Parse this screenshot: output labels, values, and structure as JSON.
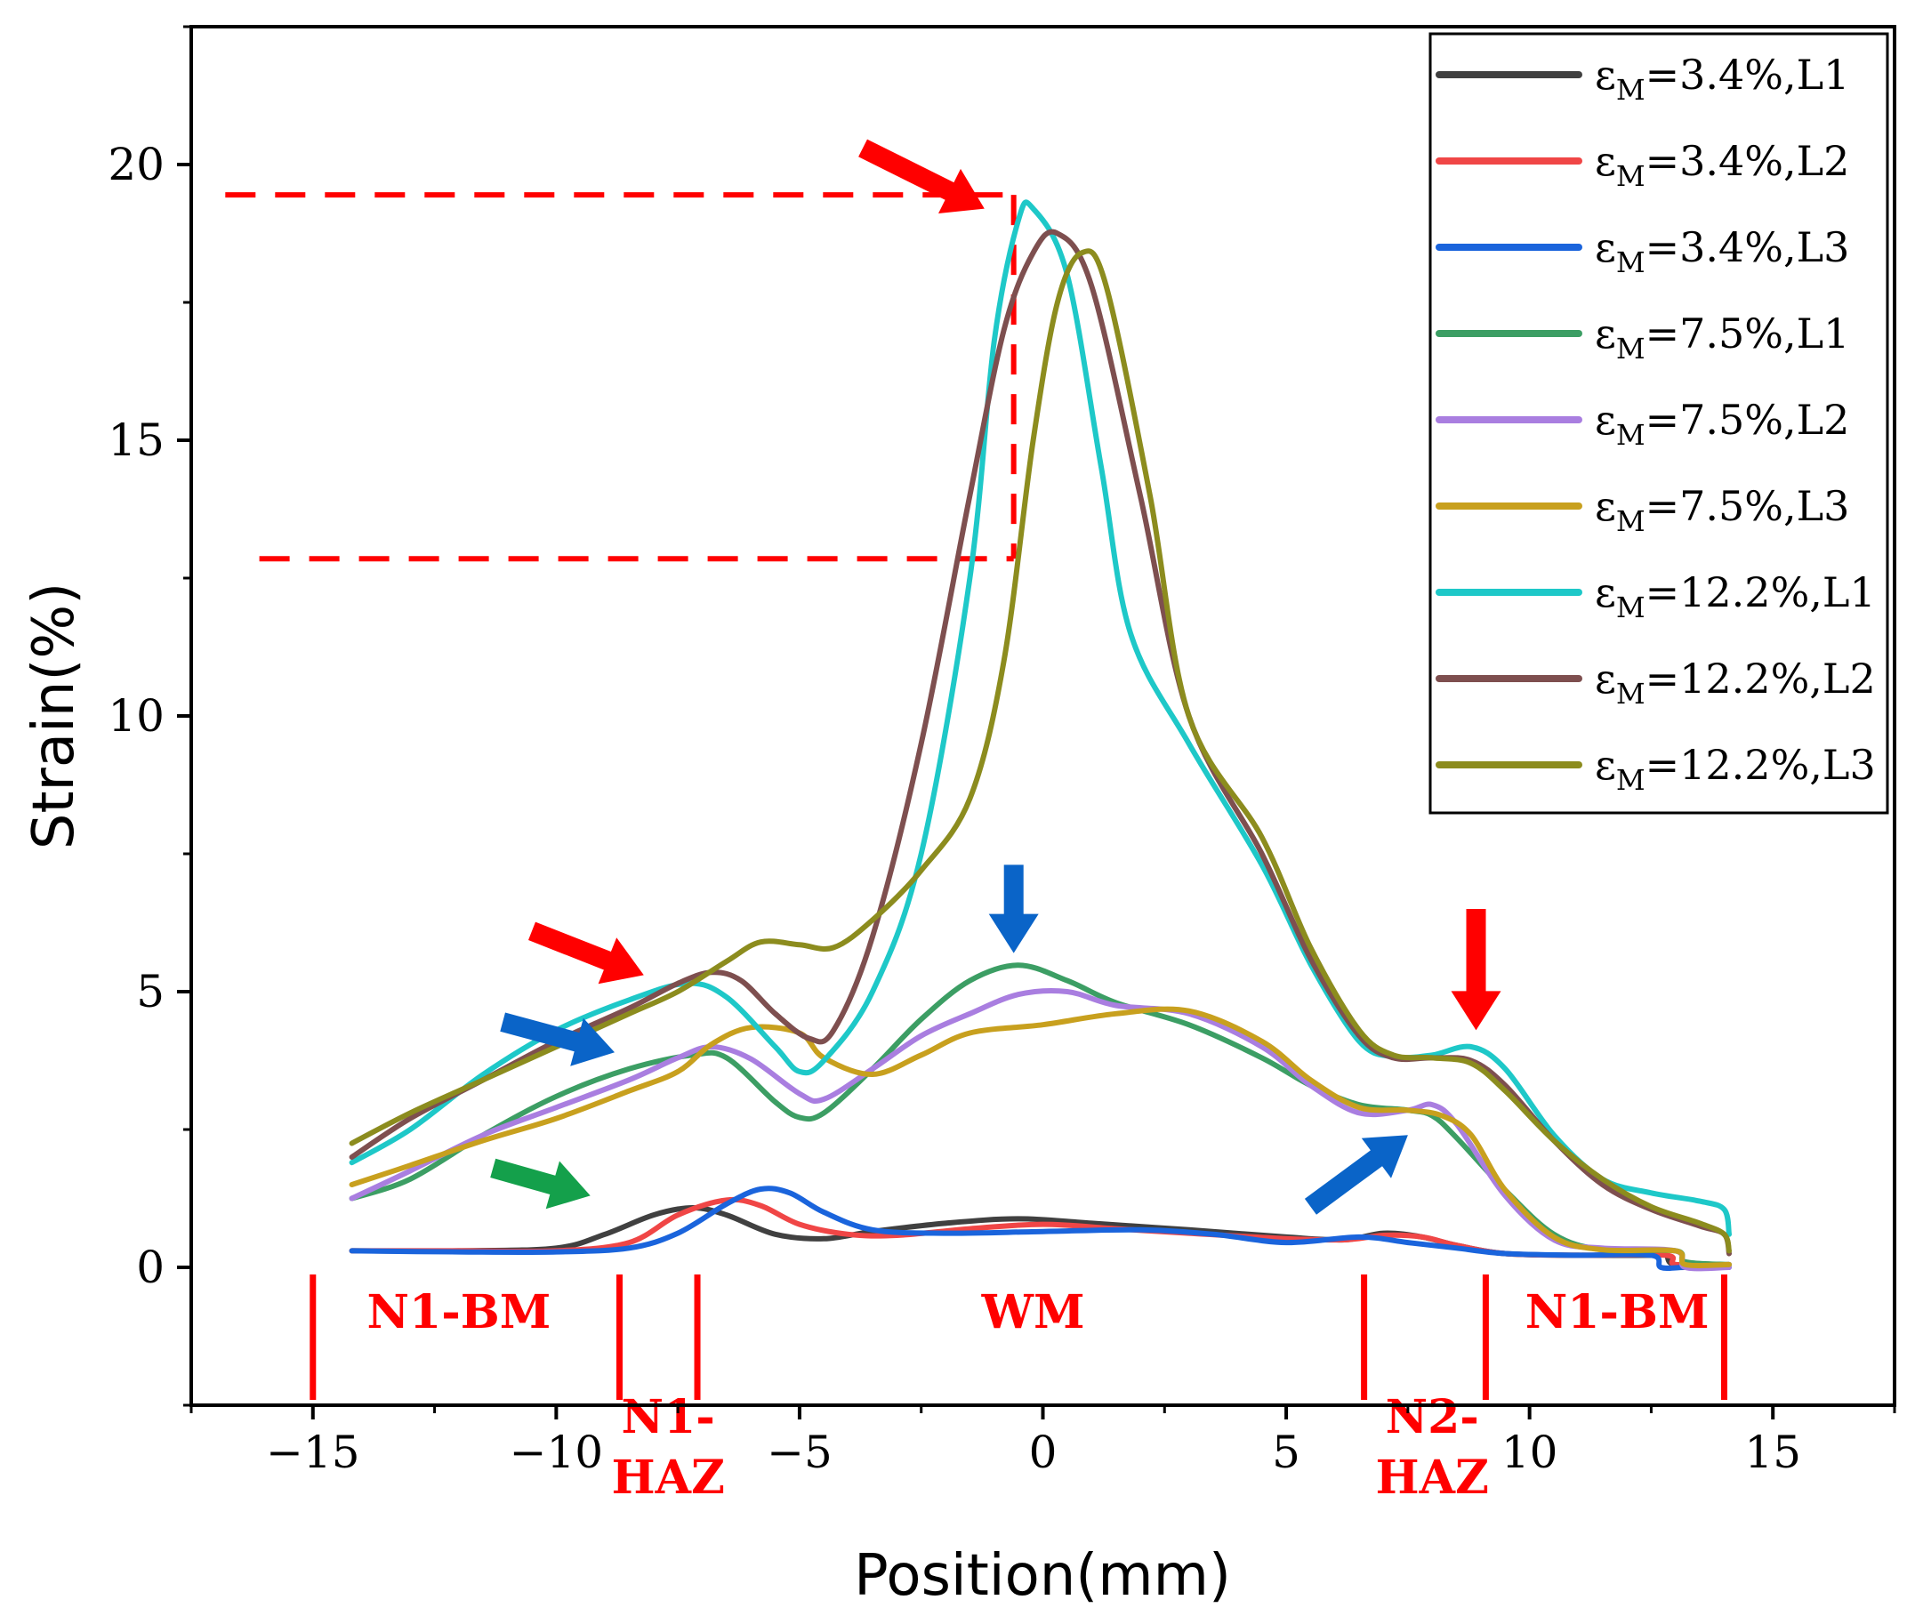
{
  "chart_data": {
    "type": "line",
    "xlabel": "Position(mm)",
    "ylabel": "Strain(%)",
    "xlim": [
      -17.5,
      17.5
    ],
    "ylim": [
      -2.5,
      22.5
    ],
    "x_ticks": [
      -15,
      -10,
      -5,
      0,
      5,
      10,
      15
    ],
    "y_ticks": [
      0,
      5,
      10,
      15,
      20
    ],
    "x_tick_labels": [
      "−15",
      "−10",
      "−5",
      "0",
      "5",
      "10",
      "15"
    ],
    "y_tick_labels": [
      "0",
      "5",
      "10",
      "15",
      "20"
    ],
    "grid": false,
    "legend_placement": "top-right",
    "series": [
      {
        "name": "εM=3.4%,L1",
        "color": "#404040",
        "points": [
          [
            -14.2,
            0.3
          ],
          [
            -12,
            0.3
          ],
          [
            -10,
            0.35
          ],
          [
            -9,
            0.6
          ],
          [
            -8,
            0.95
          ],
          [
            -7.2,
            1.08
          ],
          [
            -6.5,
            0.95
          ],
          [
            -5.5,
            0.6
          ],
          [
            -4.5,
            0.52
          ],
          [
            -3.5,
            0.65
          ],
          [
            -2,
            0.8
          ],
          [
            -0.5,
            0.88
          ],
          [
            1,
            0.8
          ],
          [
            3,
            0.68
          ],
          [
            5,
            0.55
          ],
          [
            6.2,
            0.5
          ],
          [
            7,
            0.62
          ],
          [
            7.8,
            0.55
          ],
          [
            8.5,
            0.4
          ],
          [
            9.5,
            0.25
          ],
          [
            11,
            0.22
          ],
          [
            12.5,
            0.22
          ],
          [
            12.8,
            0.22
          ],
          [
            13,
            0.05
          ],
          [
            14.1,
            0.05
          ]
        ]
      },
      {
        "name": "εM=3.4%,L2",
        "color": "#f04646",
        "points": [
          [
            -14.2,
            0.3
          ],
          [
            -12,
            0.3
          ],
          [
            -10,
            0.3
          ],
          [
            -8.5,
            0.45
          ],
          [
            -7.5,
            0.95
          ],
          [
            -6.5,
            1.22
          ],
          [
            -5.8,
            1.12
          ],
          [
            -5,
            0.78
          ],
          [
            -4,
            0.6
          ],
          [
            -3,
            0.58
          ],
          [
            -1.5,
            0.7
          ],
          [
            0,
            0.78
          ],
          [
            1.5,
            0.7
          ],
          [
            3,
            0.62
          ],
          [
            5,
            0.52
          ],
          [
            6.2,
            0.5
          ],
          [
            7,
            0.58
          ],
          [
            7.8,
            0.55
          ],
          [
            8.5,
            0.4
          ],
          [
            9.5,
            0.25
          ],
          [
            11,
            0.22
          ],
          [
            12.8,
            0.22
          ],
          [
            13,
            0.05
          ],
          [
            14.1,
            0.05
          ]
        ]
      },
      {
        "name": "εM=3.4%,L3",
        "color": "#1a64dc",
        "points": [
          [
            -14.2,
            0.3
          ],
          [
            -12,
            0.28
          ],
          [
            -10,
            0.28
          ],
          [
            -8.5,
            0.35
          ],
          [
            -7.5,
            0.62
          ],
          [
            -6.5,
            1.15
          ],
          [
            -5.8,
            1.42
          ],
          [
            -5.2,
            1.35
          ],
          [
            -4.5,
            1.0
          ],
          [
            -3.5,
            0.68
          ],
          [
            -2,
            0.62
          ],
          [
            0,
            0.65
          ],
          [
            2,
            0.68
          ],
          [
            3.5,
            0.6
          ],
          [
            5,
            0.45
          ],
          [
            6.5,
            0.55
          ],
          [
            7.5,
            0.45
          ],
          [
            8.5,
            0.35
          ],
          [
            9.5,
            0.25
          ],
          [
            11,
            0.22
          ],
          [
            12.5,
            0.22
          ],
          [
            12.7,
            0.0
          ],
          [
            13.2,
            0.0
          ],
          [
            14.1,
            0.0
          ]
        ]
      },
      {
        "name": "εM=7.5%,L1",
        "color": "#3c9e64",
        "points": [
          [
            -14.2,
            1.25
          ],
          [
            -13,
            1.6
          ],
          [
            -11.5,
            2.4
          ],
          [
            -10,
            3.1
          ],
          [
            -8.5,
            3.6
          ],
          [
            -7.2,
            3.85
          ],
          [
            -6.5,
            3.8
          ],
          [
            -5.5,
            3.0
          ],
          [
            -5,
            2.72
          ],
          [
            -4.5,
            2.8
          ],
          [
            -3.5,
            3.6
          ],
          [
            -2.5,
            4.5
          ],
          [
            -1.5,
            5.2
          ],
          [
            -0.5,
            5.48
          ],
          [
            0.5,
            5.2
          ],
          [
            1.5,
            4.8
          ],
          [
            3,
            4.4
          ],
          [
            4.5,
            3.8
          ],
          [
            5.5,
            3.3
          ],
          [
            6.5,
            2.95
          ],
          [
            7.5,
            2.85
          ],
          [
            8,
            2.75
          ],
          [
            8.5,
            2.35
          ],
          [
            9.5,
            1.4
          ],
          [
            10.5,
            0.6
          ],
          [
            11.5,
            0.32
          ],
          [
            13,
            0.3
          ],
          [
            13.2,
            0.1
          ],
          [
            14.1,
            0.05
          ]
        ]
      },
      {
        "name": "εM=7.5%,L2",
        "color": "#a97ee0",
        "points": [
          [
            -14.2,
            1.25
          ],
          [
            -13,
            1.75
          ],
          [
            -11.5,
            2.4
          ],
          [
            -10,
            2.9
          ],
          [
            -8.5,
            3.4
          ],
          [
            -7.5,
            3.8
          ],
          [
            -6.8,
            4.0
          ],
          [
            -6,
            3.78
          ],
          [
            -5,
            3.15
          ],
          [
            -4.5,
            3.05
          ],
          [
            -3.5,
            3.6
          ],
          [
            -2.5,
            4.2
          ],
          [
            -1.5,
            4.6
          ],
          [
            -0.5,
            4.95
          ],
          [
            0.5,
            5.0
          ],
          [
            1.5,
            4.75
          ],
          [
            3,
            4.6
          ],
          [
            4.5,
            4.0
          ],
          [
            5.5,
            3.3
          ],
          [
            6.5,
            2.8
          ],
          [
            7.5,
            2.85
          ],
          [
            8,
            2.95
          ],
          [
            8.5,
            2.6
          ],
          [
            9.5,
            1.3
          ],
          [
            10.5,
            0.5
          ],
          [
            11.5,
            0.35
          ],
          [
            13,
            0.3
          ],
          [
            13.2,
            0.0
          ],
          [
            14.1,
            0.0
          ]
        ]
      },
      {
        "name": "εM=7.5%,L3",
        "color": "#c8a01e",
        "points": [
          [
            -14.2,
            1.5
          ],
          [
            -13,
            1.85
          ],
          [
            -11.5,
            2.3
          ],
          [
            -10,
            2.7
          ],
          [
            -8.5,
            3.2
          ],
          [
            -7.5,
            3.55
          ],
          [
            -6.8,
            4.05
          ],
          [
            -6,
            4.35
          ],
          [
            -5,
            4.25
          ],
          [
            -4.5,
            3.8
          ],
          [
            -3.5,
            3.5
          ],
          [
            -2.5,
            3.85
          ],
          [
            -1.5,
            4.25
          ],
          [
            0,
            4.4
          ],
          [
            1.5,
            4.6
          ],
          [
            3,
            4.65
          ],
          [
            4.5,
            4.1
          ],
          [
            5.5,
            3.4
          ],
          [
            6.5,
            2.9
          ],
          [
            7.5,
            2.85
          ],
          [
            8.2,
            2.75
          ],
          [
            8.8,
            2.4
          ],
          [
            9.5,
            1.4
          ],
          [
            10.5,
            0.55
          ],
          [
            11.5,
            0.32
          ],
          [
            13,
            0.3
          ],
          [
            13.2,
            0.05
          ],
          [
            14.1,
            0.05
          ]
        ]
      },
      {
        "name": "εM=12.2%,L1",
        "color": "#1ec8c8",
        "points": [
          [
            -14.2,
            1.9
          ],
          [
            -13,
            2.5
          ],
          [
            -11.5,
            3.5
          ],
          [
            -10,
            4.3
          ],
          [
            -8.5,
            4.85
          ],
          [
            -7.3,
            5.15
          ],
          [
            -6.5,
            4.9
          ],
          [
            -5.5,
            4.0
          ],
          [
            -5,
            3.55
          ],
          [
            -4.5,
            3.75
          ],
          [
            -3.5,
            5.0
          ],
          [
            -2.5,
            7.5
          ],
          [
            -1.5,
            12.5
          ],
          [
            -1,
            16.8
          ],
          [
            -0.5,
            19.0
          ],
          [
            -0.2,
            19.2
          ],
          [
            0.5,
            18.0
          ],
          [
            1.2,
            14.5
          ],
          [
            1.8,
            11.5
          ],
          [
            3,
            9.5
          ],
          [
            4.5,
            7.3
          ],
          [
            5.5,
            5.5
          ],
          [
            6.5,
            4.1
          ],
          [
            7.2,
            3.82
          ],
          [
            8,
            3.85
          ],
          [
            8.8,
            4.0
          ],
          [
            9.5,
            3.6
          ],
          [
            10.5,
            2.4
          ],
          [
            11.5,
            1.6
          ],
          [
            12.5,
            1.35
          ],
          [
            13.5,
            1.2
          ],
          [
            14,
            1.05
          ],
          [
            14.1,
            0.6
          ]
        ]
      },
      {
        "name": "εM=12.2%,L2",
        "color": "#7e4f4f",
        "points": [
          [
            -14.2,
            2.0
          ],
          [
            -13,
            2.7
          ],
          [
            -11.5,
            3.4
          ],
          [
            -10,
            4.1
          ],
          [
            -8.5,
            4.7
          ],
          [
            -7.5,
            5.15
          ],
          [
            -6.8,
            5.35
          ],
          [
            -6.2,
            5.2
          ],
          [
            -5.5,
            4.6
          ],
          [
            -4.8,
            4.15
          ],
          [
            -4.3,
            4.3
          ],
          [
            -3.5,
            6.0
          ],
          [
            -2.5,
            9.5
          ],
          [
            -1.5,
            14.0
          ],
          [
            -0.8,
            17.0
          ],
          [
            -0.2,
            18.4
          ],
          [
            0.3,
            18.75
          ],
          [
            1,
            17.8
          ],
          [
            2,
            14.0
          ],
          [
            3,
            10.0
          ],
          [
            4.5,
            7.5
          ],
          [
            5.5,
            5.6
          ],
          [
            6.5,
            4.2
          ],
          [
            7.2,
            3.8
          ],
          [
            8,
            3.8
          ],
          [
            8.8,
            3.75
          ],
          [
            9.5,
            3.3
          ],
          [
            10.5,
            2.3
          ],
          [
            11.5,
            1.5
          ],
          [
            12.5,
            1.05
          ],
          [
            13.5,
            0.75
          ],
          [
            14,
            0.6
          ],
          [
            14.1,
            0.25
          ]
        ]
      },
      {
        "name": "εM=12.2%,L3",
        "color": "#8c8c1e",
        "points": [
          [
            -14.2,
            2.25
          ],
          [
            -13,
            2.8
          ],
          [
            -11.5,
            3.4
          ],
          [
            -10,
            4.0
          ],
          [
            -8.5,
            4.6
          ],
          [
            -7.5,
            5.0
          ],
          [
            -6.5,
            5.55
          ],
          [
            -5.8,
            5.9
          ],
          [
            -5,
            5.85
          ],
          [
            -4.3,
            5.8
          ],
          [
            -3.5,
            6.3
          ],
          [
            -2.5,
            7.2
          ],
          [
            -1.5,
            8.5
          ],
          [
            -0.8,
            11.0
          ],
          [
            -0.2,
            15.0
          ],
          [
            0.3,
            17.5
          ],
          [
            0.8,
            18.4
          ],
          [
            1.3,
            17.8
          ],
          [
            2.2,
            14.0
          ],
          [
            3,
            10.0
          ],
          [
            4.5,
            7.8
          ],
          [
            5.5,
            5.8
          ],
          [
            6.5,
            4.3
          ],
          [
            7.2,
            3.85
          ],
          [
            8,
            3.8
          ],
          [
            8.8,
            3.7
          ],
          [
            9.5,
            3.2
          ],
          [
            10.5,
            2.3
          ],
          [
            11.5,
            1.6
          ],
          [
            12.5,
            1.1
          ],
          [
            13.5,
            0.8
          ],
          [
            14,
            0.6
          ],
          [
            14.1,
            0.3
          ]
        ]
      }
    ],
    "annotations": {
      "zone_labels": [
        {
          "text": "N1-BM",
          "x": -12.0,
          "y": -1.1
        },
        {
          "text": "N1-",
          "x": -7.7,
          "y": -3.0
        },
        {
          "text": "HAZ",
          "x": -7.7,
          "y": -4.1
        },
        {
          "text": "WM",
          "x": -0.2,
          "y": -1.1
        },
        {
          "text": "N2-",
          "x": 8.0,
          "y": -3.0
        },
        {
          "text": "HAZ",
          "x": 8.0,
          "y": -4.1
        },
        {
          "text": "N1-BM",
          "x": 11.8,
          "y": -1.1
        }
      ],
      "zone_boundaries": [
        -15.0,
        -8.7,
        -7.1,
        6.6,
        9.1,
        14.0
      ],
      "dashed_lines": [
        {
          "x1": -16.8,
          "y1": 19.45,
          "x2": -0.7,
          "y2": 19.45
        },
        {
          "x1": -16.1,
          "y1": 12.85,
          "x2": -0.6,
          "y2": 12.85
        },
        {
          "x1": -0.6,
          "y1": 19.45,
          "x2": -0.6,
          "y2": 12.85
        }
      ],
      "arrows": [
        {
          "color": "#ff0000",
          "from": [
            -3.7,
            20.3
          ],
          "to": [
            -1.2,
            19.2
          ]
        },
        {
          "color": "#ff0000",
          "from": [
            -10.5,
            6.1
          ],
          "to": [
            -8.2,
            5.3
          ]
        },
        {
          "color": "#0a64c8",
          "from": [
            -11.1,
            4.45
          ],
          "to": [
            -8.8,
            3.9
          ]
        },
        {
          "color": "#14a04b",
          "from": [
            -11.3,
            1.8
          ],
          "to": [
            -9.3,
            1.3
          ]
        },
        {
          "color": "#0a64c8",
          "from": [
            -0.6,
            7.3
          ],
          "to": [
            -0.6,
            5.7
          ]
        },
        {
          "color": "#ff0000",
          "from": [
            8.9,
            6.5
          ],
          "to": [
            8.9,
            4.3
          ]
        },
        {
          "color": "#0a64c8",
          "from": [
            5.5,
            1.1
          ],
          "to": [
            7.5,
            2.4
          ]
        }
      ]
    }
  }
}
